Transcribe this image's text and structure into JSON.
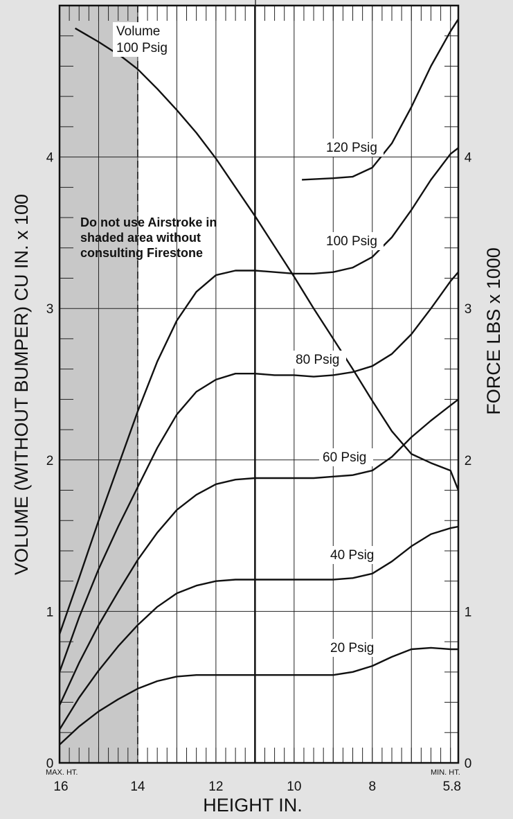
{
  "chart_data": {
    "type": "line",
    "xlabel": "HEIGHT IN.",
    "ylabel_left": "VOLUME (WITHOUT BUMPER) CU IN. x 100",
    "ylabel_right": "FORCE LBS x 1000",
    "x_ticks": [
      "16",
      "14",
      "12",
      "10",
      "8",
      "5.8"
    ],
    "x_end_labels": {
      "left": "MAX. HT.",
      "right": "MIN. HT."
    },
    "y_ticks_left": [
      "0",
      "1",
      "2",
      "3",
      "4"
    ],
    "y_ticks_right": [
      "0",
      "1",
      "2",
      "3",
      "4"
    ],
    "xlim": [
      16,
      5.8
    ],
    "ylim": [
      0,
      5
    ],
    "grid": true,
    "shaded_region": {
      "x_from": 16,
      "x_to": 14
    },
    "reference_line_x": 11,
    "note": [
      "Do not use Airstroke in",
      "shaded area without",
      "consulting Firestone"
    ],
    "series": [
      {
        "name": "Volume 100 Psig",
        "label_lines": [
          "Volume",
          "100 Psig"
        ],
        "x": [
          15.6,
          15,
          14.4,
          14,
          13.5,
          13,
          12.5,
          12,
          11.5,
          11,
          10.5,
          10,
          9.5,
          9,
          8.5,
          8,
          7.5,
          7,
          6.5,
          6,
          5.8
        ],
        "y": [
          4.85,
          4.76,
          4.66,
          4.58,
          4.45,
          4.31,
          4.16,
          3.99,
          3.8,
          3.61,
          3.41,
          3.21,
          3.0,
          2.8,
          2.6,
          2.39,
          2.19,
          2.04,
          1.98,
          1.93,
          1.8
        ]
      },
      {
        "name": "120 Psig",
        "x": [
          9.8,
          9,
          8.5,
          8,
          7.5,
          7,
          6.5,
          6,
          5.8
        ],
        "y": [
          3.85,
          3.86,
          3.87,
          3.93,
          4.09,
          4.33,
          4.6,
          4.83,
          4.91
        ]
      },
      {
        "name": "100 Psig",
        "x": [
          16,
          15.5,
          15,
          14.5,
          14,
          13.5,
          13,
          12.5,
          12,
          11.5,
          11,
          10.5,
          10,
          9.5,
          9,
          8.5,
          8,
          7.5,
          7,
          6.5,
          6,
          5.8
        ],
        "y": [
          0.85,
          1.22,
          1.6,
          1.96,
          2.32,
          2.65,
          2.92,
          3.11,
          3.22,
          3.25,
          3.25,
          3.24,
          3.23,
          3.23,
          3.24,
          3.27,
          3.34,
          3.47,
          3.65,
          3.85,
          4.02,
          4.06
        ]
      },
      {
        "name": "80 Psig",
        "x": [
          16,
          15.5,
          15,
          14.5,
          14,
          13.5,
          13,
          12.5,
          12,
          11.5,
          11,
          10.5,
          10,
          9.5,
          9,
          8.5,
          8,
          7.5,
          7,
          6.5,
          6,
          5.8
        ],
        "y": [
          0.6,
          0.96,
          1.28,
          1.56,
          1.82,
          2.08,
          2.3,
          2.45,
          2.53,
          2.57,
          2.57,
          2.56,
          2.56,
          2.55,
          2.56,
          2.58,
          2.62,
          2.7,
          2.83,
          3.0,
          3.18,
          3.24
        ]
      },
      {
        "name": "60 Psig",
        "x": [
          16,
          15.5,
          15,
          14.5,
          14,
          13.5,
          13,
          12.5,
          12,
          11.5,
          11,
          10.5,
          10,
          9.5,
          9,
          8.5,
          8,
          7.5,
          7,
          6.5,
          6,
          5.8
        ],
        "y": [
          0.38,
          0.66,
          0.91,
          1.13,
          1.34,
          1.52,
          1.67,
          1.77,
          1.84,
          1.87,
          1.88,
          1.88,
          1.88,
          1.88,
          1.89,
          1.9,
          1.93,
          2.02,
          2.15,
          2.26,
          2.36,
          2.4
        ]
      },
      {
        "name": "40 Psig",
        "x": [
          16,
          15.5,
          15,
          14.5,
          14,
          13.5,
          13,
          12.5,
          12,
          11.5,
          11,
          10.5,
          10,
          9.5,
          9,
          8.5,
          8,
          7.5,
          7,
          6.5,
          6,
          5.8
        ],
        "y": [
          0.22,
          0.43,
          0.61,
          0.77,
          0.91,
          1.03,
          1.12,
          1.17,
          1.2,
          1.21,
          1.21,
          1.21,
          1.21,
          1.21,
          1.21,
          1.22,
          1.25,
          1.33,
          1.43,
          1.51,
          1.55,
          1.56
        ]
      },
      {
        "name": "20 Psig",
        "x": [
          16,
          15.5,
          15,
          14.5,
          14,
          13.5,
          13,
          12.5,
          12,
          11.5,
          11,
          10.5,
          10,
          9.5,
          9,
          8.5,
          8,
          7.5,
          7,
          6.5,
          6,
          5.8
        ],
        "y": [
          0.12,
          0.24,
          0.34,
          0.42,
          0.49,
          0.54,
          0.57,
          0.58,
          0.58,
          0.58,
          0.58,
          0.58,
          0.58,
          0.58,
          0.58,
          0.6,
          0.64,
          0.7,
          0.75,
          0.76,
          0.75,
          0.75
        ]
      }
    ]
  }
}
